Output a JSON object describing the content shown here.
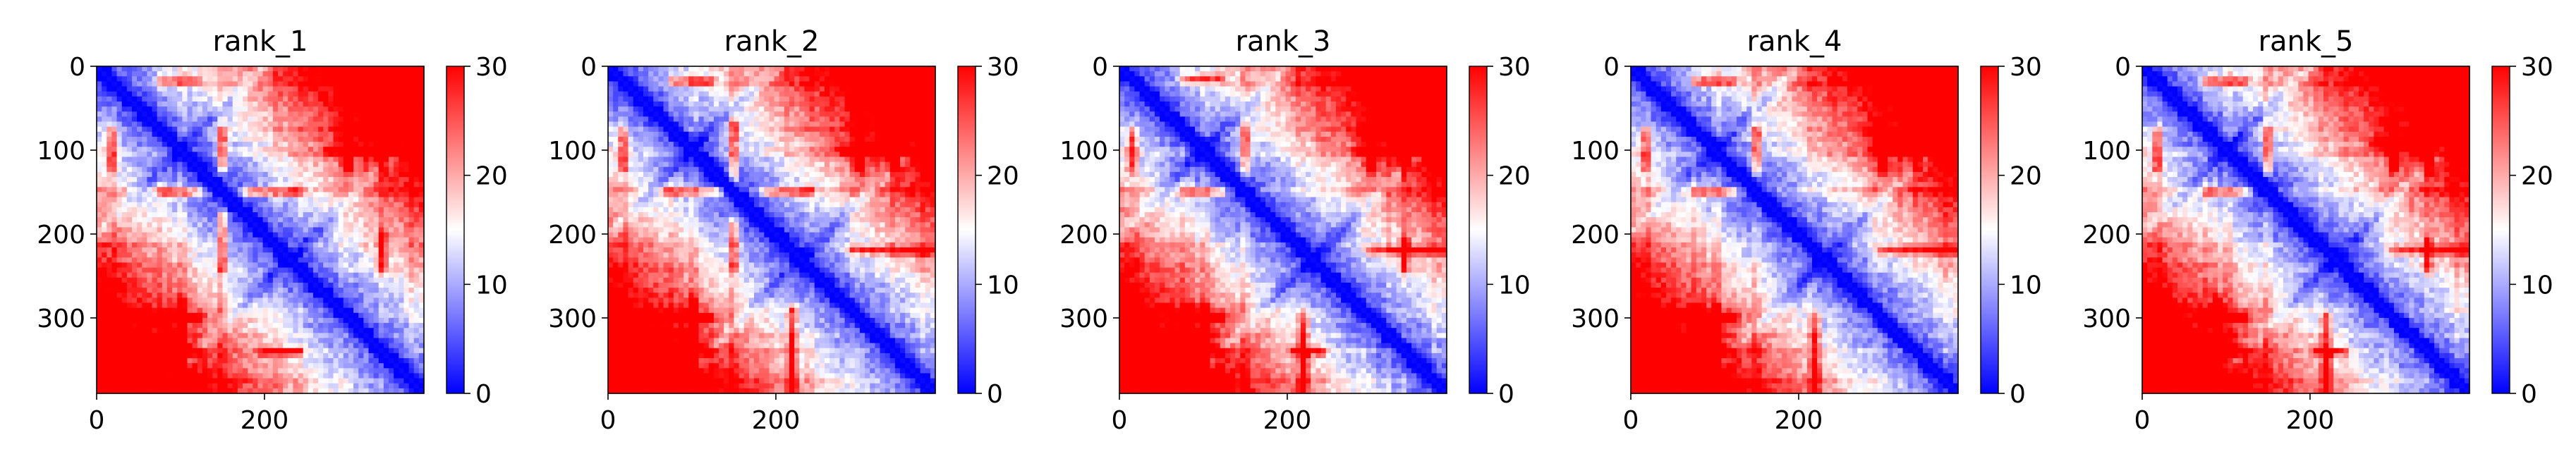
{
  "chart_data": [
    {
      "type": "heatmap",
      "title": "rank_1",
      "x_ticks": [
        0,
        200
      ],
      "y_ticks": [
        0,
        100,
        200,
        300
      ],
      "xlim": [
        0,
        390
      ],
      "ylim": [
        390,
        0
      ],
      "colorbar": {
        "ticks": [
          0,
          10,
          20,
          30
        ],
        "range": [
          0,
          30
        ],
        "colormap": "bwr",
        "colors": [
          "#0000ff",
          "#ffffff",
          "#ff0000"
        ]
      },
      "bands": [
        20,
        75,
        85,
        100,
        105,
        148,
        150,
        215,
        240,
        290,
        300,
        320,
        340,
        375
      ],
      "red_rows": [
        [
          18,
          80,
          120
        ],
        [
          100,
          280,
          390
        ],
        [
          150,
          80,
          120
        ],
        [
          150,
          180,
          240
        ],
        [
          300,
          60,
          120
        ],
        [
          340,
          60,
          120
        ],
        [
          340,
          200,
          240
        ]
      ],
      "cross_centers": [
        100,
        230
      ]
    },
    {
      "type": "heatmap",
      "title": "rank_2",
      "x_ticks": [
        0,
        200
      ],
      "y_ticks": [
        0,
        100,
        200,
        300
      ],
      "xlim": [
        0,
        390
      ],
      "ylim": [
        390,
        0
      ],
      "colorbar": {
        "ticks": [
          0,
          10,
          20,
          30
        ],
        "range": [
          0,
          30
        ],
        "colormap": "bwr",
        "colors": [
          "#0000ff",
          "#ffffff",
          "#ff0000"
        ]
      },
      "bands": [
        20,
        75,
        85,
        100,
        105,
        148,
        150,
        215,
        240,
        290,
        300,
        320,
        340,
        375
      ],
      "red_rows": [
        [
          18,
          80,
          120
        ],
        [
          100,
          280,
          390
        ],
        [
          150,
          70,
          130
        ],
        [
          150,
          190,
          240
        ],
        [
          220,
          290,
          390
        ],
        [
          300,
          60,
          120
        ],
        [
          340,
          60,
          120
        ]
      ],
      "cross_centers": [
        100,
        230
      ]
    },
    {
      "type": "heatmap",
      "title": "rank_3",
      "x_ticks": [
        0,
        200
      ],
      "y_ticks": [
        0,
        100,
        200,
        300
      ],
      "xlim": [
        0,
        390
      ],
      "ylim": [
        390,
        0
      ],
      "colorbar": {
        "ticks": [
          0,
          10,
          20,
          30
        ],
        "range": [
          0,
          30
        ],
        "colormap": "bwr",
        "colors": [
          "#0000ff",
          "#ffffff",
          "#ff0000"
        ]
      },
      "bands": [
        20,
        75,
        85,
        100,
        105,
        148,
        150,
        215,
        240,
        290,
        300,
        320,
        340,
        375
      ],
      "red_rows": [
        [
          15,
          80,
          120
        ],
        [
          80,
          290,
          390
        ],
        [
          100,
          290,
          390
        ],
        [
          150,
          80,
          120
        ],
        [
          220,
          300,
          390
        ],
        [
          300,
          70,
          120
        ],
        [
          340,
          70,
          120
        ],
        [
          340,
          210,
          240
        ]
      ],
      "cross_centers": [
        100,
        230
      ]
    },
    {
      "type": "heatmap",
      "title": "rank_4",
      "x_ticks": [
        0,
        200
      ],
      "y_ticks": [
        0,
        100,
        200,
        300
      ],
      "xlim": [
        0,
        390
      ],
      "ylim": [
        390,
        0
      ],
      "colorbar": {
        "ticks": [
          0,
          10,
          20,
          30
        ],
        "range": [
          0,
          30
        ],
        "colormap": "bwr",
        "colors": [
          "#0000ff",
          "#ffffff",
          "#ff0000"
        ]
      },
      "bands": [
        20,
        75,
        85,
        100,
        105,
        148,
        150,
        215,
        240,
        290,
        300,
        320,
        340,
        375
      ],
      "red_rows": [
        [
          18,
          80,
          120
        ],
        [
          80,
          290,
          390
        ],
        [
          100,
          290,
          390
        ],
        [
          150,
          80,
          120
        ],
        [
          220,
          300,
          390
        ],
        [
          300,
          70,
          120
        ],
        [
          340,
          70,
          120
        ]
      ],
      "cross_centers": [
        100,
        230
      ]
    },
    {
      "type": "heatmap",
      "title": "rank_5",
      "x_ticks": [
        0,
        200
      ],
      "y_ticks": [
        0,
        100,
        200,
        300
      ],
      "xlim": [
        0,
        390
      ],
      "ylim": [
        390,
        0
      ],
      "colorbar": {
        "ticks": [
          0,
          10,
          20,
          30
        ],
        "range": [
          0,
          30
        ],
        "colormap": "bwr",
        "colors": [
          "#0000ff",
          "#ffffff",
          "#ff0000"
        ]
      },
      "bands": [
        20,
        75,
        85,
        100,
        105,
        148,
        150,
        215,
        240,
        290,
        300,
        320,
        340,
        375
      ],
      "red_rows": [
        [
          18,
          80,
          120
        ],
        [
          90,
          280,
          390
        ],
        [
          150,
          80,
          120
        ],
        [
          220,
          300,
          390
        ],
        [
          300,
          70,
          120
        ],
        [
          340,
          70,
          120
        ],
        [
          340,
          210,
          240
        ]
      ],
      "cross_centers": [
        100,
        230
      ]
    }
  ]
}
